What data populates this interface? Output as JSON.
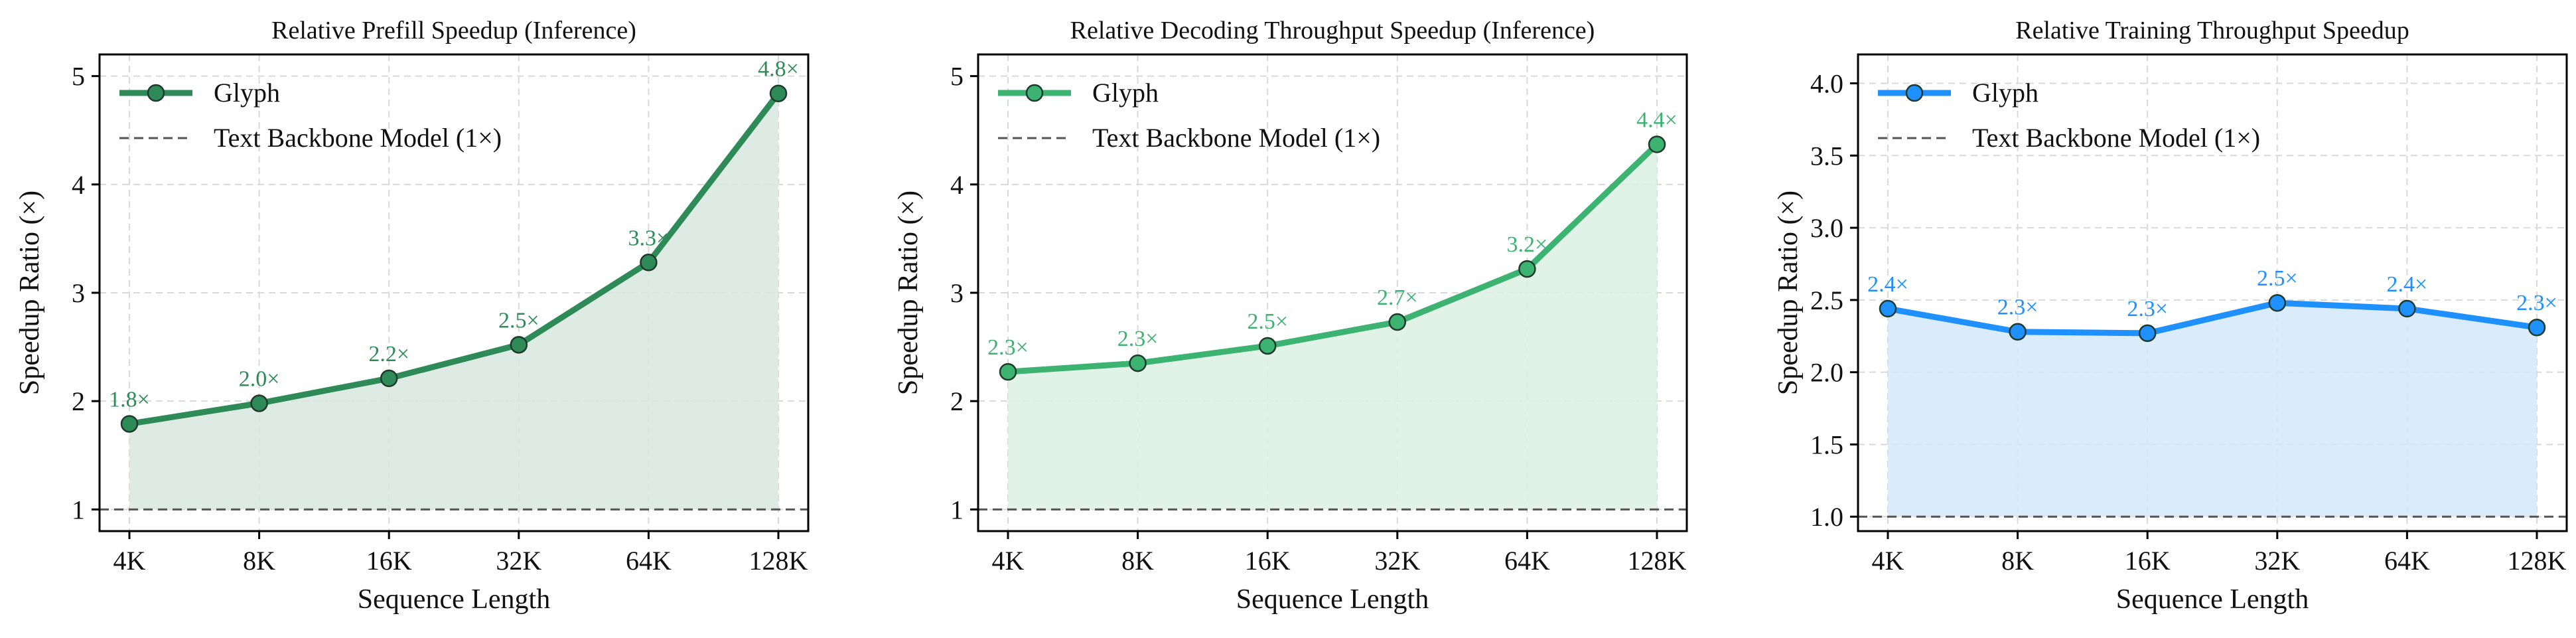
{
  "chart_data": [
    {
      "type": "line",
      "title": "Relative Prefill Speedup (Inference)",
      "xlabel": "Sequence Length",
      "ylabel": "Speedup Ratio (×)",
      "categories": [
        "4K",
        "8K",
        "16K",
        "32K",
        "64K",
        "128K"
      ],
      "series": [
        {
          "name": "Glyph",
          "values": [
            1.79,
            1.98,
            2.21,
            2.52,
            3.28,
            4.84
          ],
          "labels": [
            "1.8×",
            "2.0×",
            "2.2×",
            "2.5×",
            "3.3×",
            "4.8×"
          ]
        }
      ],
      "baseline": {
        "name": "Text Backbone Model (1×)",
        "value": 1.0
      },
      "ylim": [
        0.8,
        5.2
      ],
      "yticks": [
        1,
        2,
        3,
        4,
        5
      ],
      "ytick_labels": [
        "1",
        "2",
        "3",
        "4",
        "5"
      ],
      "grid": true,
      "legend": "top-left",
      "color": "#2e8b57",
      "fill": "#d7e8df",
      "marker_fill": "#2e8b57"
    },
    {
      "type": "line",
      "title": "Relative Decoding Throughput Speedup (Inference)",
      "xlabel": "Sequence Length",
      "ylabel": "Speedup Ratio (×)",
      "categories": [
        "4K",
        "8K",
        "16K",
        "32K",
        "64K",
        "128K"
      ],
      "series": [
        {
          "name": "Glyph",
          "values": [
            2.27,
            2.35,
            2.51,
            2.73,
            3.22,
            4.37
          ],
          "labels": [
            "2.3×",
            "2.3×",
            "2.5×",
            "2.7×",
            "3.2×",
            "4.4×"
          ]
        }
      ],
      "baseline": {
        "name": "Text Backbone Model (1×)",
        "value": 1.0
      },
      "ylim": [
        0.8,
        5.2
      ],
      "yticks": [
        1,
        2,
        3,
        4,
        5
      ],
      "ytick_labels": [
        "1",
        "2",
        "3",
        "4",
        "5"
      ],
      "grid": true,
      "legend": "top-left",
      "color": "#3cb371",
      "fill": "#dcf1e3",
      "marker_fill": "#3cb371"
    },
    {
      "type": "line",
      "title": "Relative Training Throughput Speedup",
      "xlabel": "Sequence Length",
      "ylabel": "Speedup Ratio (×)",
      "categories": [
        "4K",
        "8K",
        "16K",
        "32K",
        "64K",
        "128K"
      ],
      "series": [
        {
          "name": "Glyph",
          "values": [
            2.44,
            2.28,
            2.27,
            2.48,
            2.44,
            2.31
          ],
          "labels": [
            "2.4×",
            "2.3×",
            "2.3×",
            "2.5×",
            "2.4×",
            "2.3×"
          ]
        }
      ],
      "baseline": {
        "name": "Text Backbone Model (1×)",
        "value": 1.0
      },
      "ylim": [
        0.9,
        4.2
      ],
      "yticks": [
        1.0,
        1.5,
        2.0,
        2.5,
        3.0,
        3.5,
        4.0
      ],
      "ytick_labels": [
        "1.0",
        "1.5",
        "2.0",
        "2.5",
        "3.0",
        "3.5",
        "4.0"
      ],
      "grid": true,
      "legend": "top-left",
      "color": "#1e90ff",
      "fill": "#d4e8fb",
      "marker_fill": "#1e90ff"
    }
  ]
}
